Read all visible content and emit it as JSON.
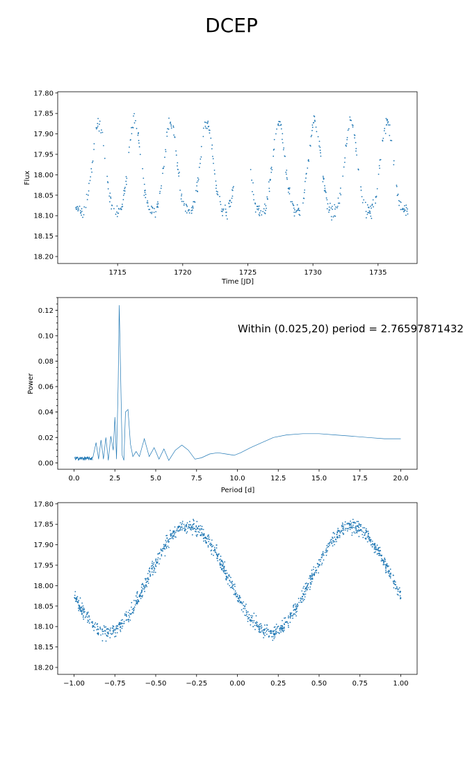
{
  "figure": {
    "title": "DCEP",
    "accent_color": "#1f77b4"
  },
  "chart_data": [
    {
      "type": "scatter",
      "title": "",
      "xlabel": "Time [JD]",
      "ylabel": "Flux",
      "xlim": [
        1710.4,
        1738.0
      ],
      "ylim": [
        18.217,
        17.797
      ],
      "y_inverted": true,
      "xticks": [
        1715,
        1720,
        1725,
        1730,
        1735
      ],
      "yticks": [
        17.8,
        17.85,
        17.9,
        17.95,
        18.0,
        18.05,
        18.1,
        18.15,
        18.2
      ],
      "tick_decimals": {
        "x": 0,
        "y": 2
      },
      "marker": "point",
      "grid": false,
      "series": [
        {
          "points_approx": true,
          "period": 2.766,
          "epoch": 1713.55,
          "mean": 18.0,
          "amplitude": 0.128,
          "scatter": 0.02,
          "x_start": 1711.8,
          "x_end": 1737.3,
          "cadence": 0.02,
          "gaps": [
            [
              1723.9,
              1725.2
            ]
          ]
        }
      ]
    },
    {
      "type": "line",
      "title": "",
      "xlabel": "Period [d]",
      "ylabel": "Power",
      "xlim": [
        -1.0,
        21.0
      ],
      "ylim": [
        -0.005,
        0.13
      ],
      "xticks": [
        0.0,
        2.5,
        5.0,
        7.5,
        10.0,
        12.5,
        15.0,
        17.5,
        20.0
      ],
      "yticks": [
        0.0,
        0.02,
        0.04,
        0.06,
        0.08,
        0.1,
        0.12
      ],
      "tick_decimals": {
        "x": 1,
        "y": 2
      },
      "minor_yticks": true,
      "grid": false,
      "annotation": "Within (0.025,20) period = 2.76597871432",
      "series": [
        {
          "x": [
            0.03,
            0.4,
            0.8,
            1.15,
            1.35,
            1.5,
            1.65,
            1.8,
            1.95,
            2.1,
            2.25,
            2.4,
            2.5,
            2.6,
            2.7,
            2.766,
            2.85,
            2.95,
            3.05,
            3.15,
            3.3,
            3.45,
            3.6,
            3.8,
            4.0,
            4.3,
            4.6,
            4.9,
            5.2,
            5.5,
            5.8,
            6.2,
            6.6,
            7.0,
            7.4,
            7.8,
            8.3,
            8.8,
            9.3,
            9.8,
            10.2,
            10.8,
            11.5,
            12.2,
            13.0,
            14.0,
            15.0,
            16.0,
            17.0,
            18.0,
            19.0,
            20.0
          ],
          "values": [
            0.002,
            0.003,
            0.003,
            0.004,
            0.016,
            0.003,
            0.018,
            0.003,
            0.02,
            0.002,
            0.021,
            0.01,
            0.036,
            0.003,
            0.06,
            0.124,
            0.07,
            0.006,
            0.002,
            0.04,
            0.042,
            0.015,
            0.005,
            0.009,
            0.005,
            0.019,
            0.005,
            0.012,
            0.003,
            0.011,
            0.002,
            0.01,
            0.014,
            0.01,
            0.003,
            0.004,
            0.007,
            0.008,
            0.007,
            0.006,
            0.008,
            0.012,
            0.016,
            0.02,
            0.022,
            0.023,
            0.023,
            0.022,
            0.021,
            0.02,
            0.019,
            0.019
          ]
        }
      ]
    },
    {
      "type": "scatter",
      "title": "",
      "xlabel": "",
      "ylabel": "",
      "xlim": [
        -1.1,
        1.1
      ],
      "ylim": [
        18.217,
        17.797
      ],
      "y_inverted": true,
      "xticks": [
        -1.0,
        -0.75,
        -0.5,
        -0.25,
        0.0,
        0.25,
        0.5,
        0.75,
        1.0
      ],
      "yticks": [
        17.8,
        17.85,
        17.9,
        17.95,
        18.0,
        18.05,
        18.1,
        18.15,
        18.2
      ],
      "tick_decimals": {
        "x": 2,
        "y": 2
      },
      "marker": "point",
      "grid": false,
      "series": [
        {
          "points_approx": true,
          "phase_range": [
            -1.0,
            1.0
          ],
          "count": 1250,
          "mean": 17.985,
          "amplitude": 0.13,
          "scatter": 0.022,
          "max_phase": 0.7,
          "min_phase": 0.2
        }
      ]
    }
  ]
}
